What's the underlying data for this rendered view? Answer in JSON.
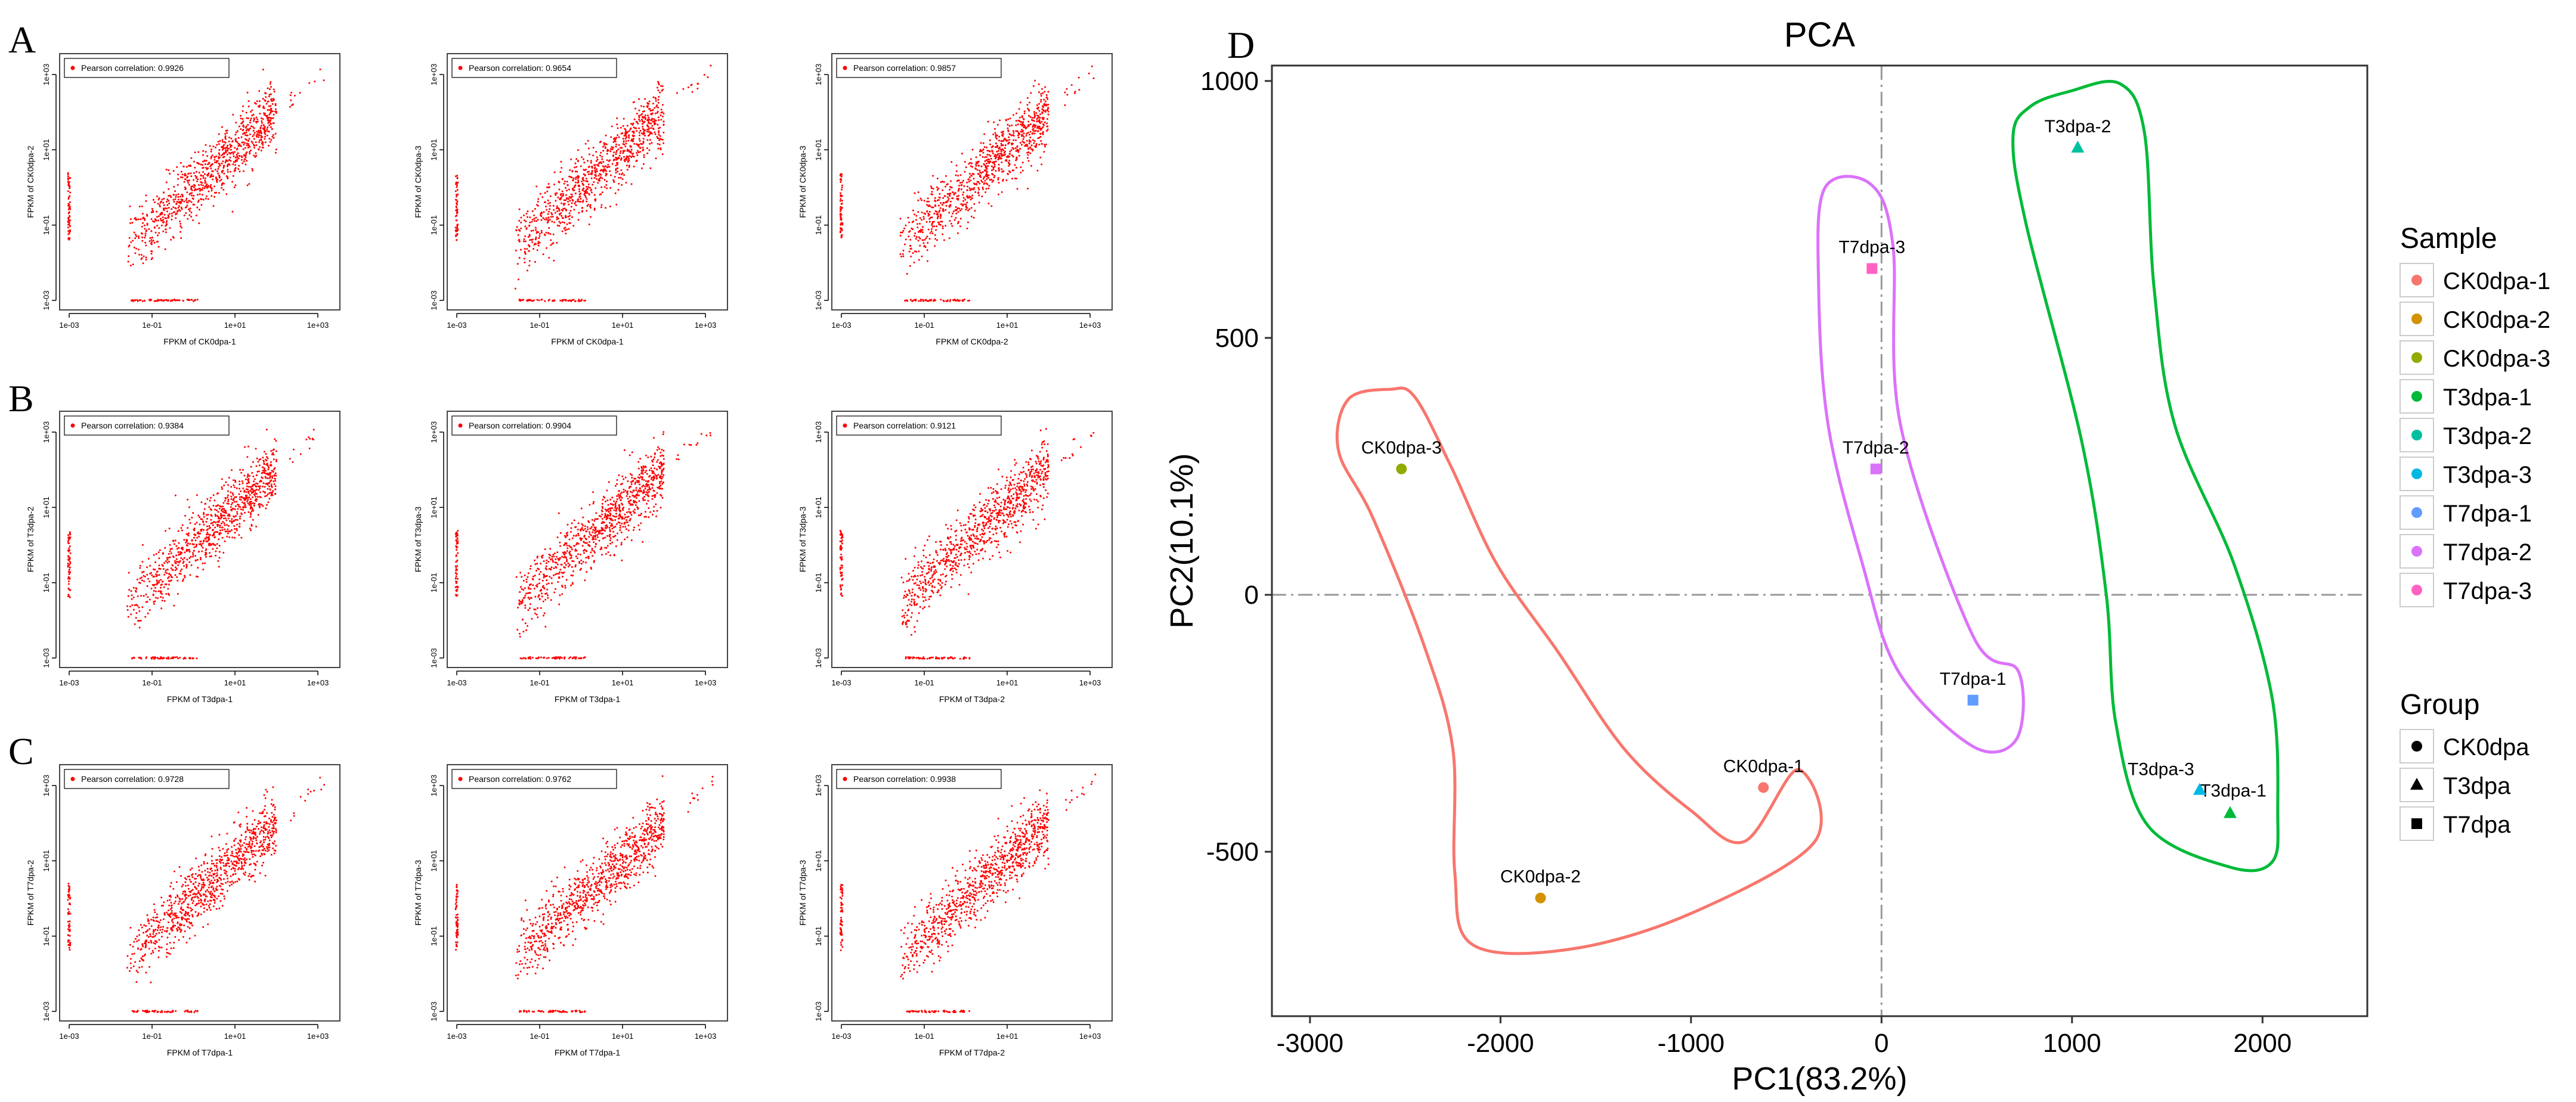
{
  "panel_letters": {
    "a": "A",
    "b": "B",
    "c": "C",
    "d": "D"
  },
  "chart_data": [
    {
      "type": "scatter",
      "panel": "A",
      "title": "Pearson correlation: 0.9926",
      "xlabel": "FPKM of CK0dpa-1",
      "ylabel": "FPKM of CK0dpa-2",
      "xscale": "log10",
      "yscale": "log10",
      "xlim": [
        0.001,
        2000
      ],
      "ylim": [
        0.001,
        2000
      ],
      "xticks": [
        "1e-03",
        "1e-01",
        "1e+01",
        "1e+03"
      ],
      "yticks": [
        "1e-03",
        "1e-01",
        "1e+01",
        "1e+03"
      ],
      "legend": "top-left",
      "point_color": "#FF0000",
      "seed": 11
    },
    {
      "type": "scatter",
      "panel": "A",
      "title": "Pearson correlation: 0.9654",
      "xlabel": "FPKM of CK0dpa-1",
      "ylabel": "FPKM of CK0dpa-3",
      "xscale": "log10",
      "yscale": "log10",
      "xlim": [
        0.001,
        2000
      ],
      "ylim": [
        0.001,
        2000
      ],
      "xticks": [
        "1e-03",
        "1e-01",
        "1e+01",
        "1e+03"
      ],
      "yticks": [
        "1e-03",
        "1e-01",
        "1e+01",
        "1e+03"
      ],
      "legend": "top-left",
      "point_color": "#FF0000",
      "seed": 12
    },
    {
      "type": "scatter",
      "panel": "A",
      "title": "Pearson correlation: 0.9857",
      "xlabel": "FPKM of CK0dpa-2",
      "ylabel": "FPKM of CK0dpa-3",
      "xscale": "log10",
      "yscale": "log10",
      "xlim": [
        0.001,
        2000
      ],
      "ylim": [
        0.001,
        2000
      ],
      "xticks": [
        "1e-03",
        "1e-01",
        "1e+01",
        "1e+03"
      ],
      "yticks": [
        "1e-03",
        "1e-01",
        "1e+01",
        "1e+03"
      ],
      "legend": "top-left",
      "point_color": "#FF0000",
      "seed": 13
    },
    {
      "type": "scatter",
      "panel": "B",
      "title": "Pearson correlation: 0.9384",
      "xlabel": "FPKM of T3dpa-1",
      "ylabel": "FPKM of T3dpa-2",
      "xscale": "log10",
      "yscale": "log10",
      "xlim": [
        0.001,
        2000
      ],
      "ylim": [
        0.001,
        2000
      ],
      "xticks": [
        "1e-03",
        "1e-01",
        "1e+01",
        "1e+03"
      ],
      "yticks": [
        "1e-03",
        "1e-01",
        "1e+01",
        "1e+03"
      ],
      "legend": "top-left",
      "point_color": "#FF0000",
      "seed": 21
    },
    {
      "type": "scatter",
      "panel": "B",
      "title": "Pearson correlation: 0.9904",
      "xlabel": "FPKM of T3dpa-1",
      "ylabel": "FPKM of T3dpa-3",
      "xscale": "log10",
      "yscale": "log10",
      "xlim": [
        0.001,
        2000
      ],
      "ylim": [
        0.001,
        2000
      ],
      "xticks": [
        "1e-03",
        "1e-01",
        "1e+01",
        "1e+03"
      ],
      "yticks": [
        "1e-03",
        "1e-01",
        "1e+01",
        "1e+03"
      ],
      "legend": "top-left",
      "point_color": "#FF0000",
      "seed": 22
    },
    {
      "type": "scatter",
      "panel": "B",
      "title": "Pearson correlation: 0.9121",
      "xlabel": "FPKM of T3dpa-2",
      "ylabel": "FPKM of T3dpa-3",
      "xscale": "log10",
      "yscale": "log10",
      "xlim": [
        0.001,
        2000
      ],
      "ylim": [
        0.001,
        2000
      ],
      "xticks": [
        "1e-03",
        "1e-01",
        "1e+01",
        "1e+03"
      ],
      "yticks": [
        "1e-03",
        "1e-01",
        "1e+01",
        "1e+03"
      ],
      "legend": "top-left",
      "point_color": "#FF0000",
      "seed": 23
    },
    {
      "type": "scatter",
      "panel": "C",
      "title": "Pearson correlation: 0.9728",
      "xlabel": "FPKM of T7dpa-1",
      "ylabel": "FPKM of T7dpa-2",
      "xscale": "log10",
      "yscale": "log10",
      "xlim": [
        0.001,
        2000
      ],
      "ylim": [
        0.001,
        2000
      ],
      "xticks": [
        "1e-03",
        "1e-01",
        "1e+01",
        "1e+03"
      ],
      "yticks": [
        "1e-03",
        "1e-01",
        "1e+01",
        "1e+03"
      ],
      "legend": "top-left",
      "point_color": "#FF0000",
      "seed": 31
    },
    {
      "type": "scatter",
      "panel": "C",
      "title": "Pearson correlation: 0.9762",
      "xlabel": "FPKM of T7dpa-1",
      "ylabel": "FPKM of T7dpa-3",
      "xscale": "log10",
      "yscale": "log10",
      "xlim": [
        0.001,
        2000
      ],
      "ylim": [
        0.001,
        2000
      ],
      "xticks": [
        "1e-03",
        "1e-01",
        "1e+01",
        "1e+03"
      ],
      "yticks": [
        "1e-03",
        "1e-01",
        "1e+01",
        "1e+03"
      ],
      "legend": "top-left",
      "point_color": "#FF0000",
      "seed": 32
    },
    {
      "type": "scatter",
      "panel": "C",
      "title": "Pearson correlation: 0.9938",
      "xlabel": "FPKM of T7dpa-2",
      "ylabel": "FPKM of T7dpa-3",
      "xscale": "log10",
      "yscale": "log10",
      "xlim": [
        0.001,
        2000
      ],
      "ylim": [
        0.001,
        2000
      ],
      "xticks": [
        "1e-03",
        "1e-01",
        "1e+01",
        "1e+03"
      ],
      "yticks": [
        "1e-03",
        "1e-01",
        "1e+01",
        "1e+03"
      ],
      "legend": "top-left",
      "point_color": "#FF0000",
      "seed": 33
    },
    {
      "type": "scatter",
      "panel": "D",
      "title": "PCA",
      "xlabel": "PC1(83.2%)",
      "ylabel": "PC2(10.1%)",
      "xlim": [
        -3200,
        2550
      ],
      "ylim": [
        -820,
        1030
      ],
      "xticks": [
        -3000,
        -2000,
        -1000,
        0,
        1000,
        2000
      ],
      "yticks": [
        -500,
        0,
        500,
        1000
      ],
      "tick_labels_x": [
        "-3000",
        "-2000",
        "-1000",
        "0",
        "1000",
        "2000"
      ],
      "tick_labels_y": [
        "-500",
        "0",
        "500",
        "1000"
      ],
      "reference_lines": {
        "x": 0,
        "y": 0
      },
      "points": [
        {
          "label": "CK0dpa-1",
          "x": -620,
          "y": -375,
          "group": "CK0dpa",
          "color": "#F8766D"
        },
        {
          "label": "CK0dpa-2",
          "x": -1790,
          "y": -590,
          "group": "CK0dpa",
          "color": "#D39200"
        },
        {
          "label": "CK0dpa-3",
          "x": -2520,
          "y": 245,
          "group": "CK0dpa",
          "color": "#93AA00"
        },
        {
          "label": "T3dpa-1",
          "x": 1830,
          "y": -425,
          "group": "T3dpa",
          "color": "#00BA38"
        },
        {
          "label": "T3dpa-2",
          "x": 1030,
          "y": 870,
          "group": "T3dpa",
          "color": "#00C19F"
        },
        {
          "label": "T3dpa-3",
          "x": 1670,
          "y": -380,
          "group": "T3dpa",
          "color": "#00B9E3"
        },
        {
          "label": "T7dpa-1",
          "x": 480,
          "y": -205,
          "group": "T7dpa",
          "color": "#619CFF"
        },
        {
          "label": "T7dpa-2",
          "x": -30,
          "y": 245,
          "group": "T7dpa",
          "color": "#DB72FB"
        },
        {
          "label": "T7dpa-3",
          "x": -50,
          "y": 635,
          "group": "T7dpa",
          "color": "#FF61C3"
        }
      ],
      "hulls": [
        {
          "group": "CK0dpa",
          "color": "#F8766D",
          "outline": [
            [
              -2580,
              400
            ],
            [
              -2450,
              385
            ],
            [
              -2260,
              250
            ],
            [
              -2020,
              60
            ],
            [
              -1700,
              -110
            ],
            [
              -1350,
              -300
            ],
            [
              -1000,
              -420
            ],
            [
              -720,
              -480
            ],
            [
              -440,
              -340
            ],
            [
              -350,
              -480
            ],
            [
              -1000,
              -620
            ],
            [
              -1640,
              -690
            ],
            [
              -2150,
              -680
            ],
            [
              -2240,
              -540
            ],
            [
              -2250,
              -300
            ],
            [
              -2400,
              -100
            ],
            [
              -2670,
              150
            ],
            [
              -2850,
              280
            ],
            [
              -2800,
              380
            ]
          ]
        },
        {
          "group": "T3dpa",
          "color": "#00BA38",
          "outline": [
            [
              990,
              980
            ],
            [
              1250,
              995
            ],
            [
              1380,
              900
            ],
            [
              1430,
              600
            ],
            [
              1540,
              330
            ],
            [
              1850,
              60
            ],
            [
              2050,
              -200
            ],
            [
              2080,
              -420
            ],
            [
              2050,
              -520
            ],
            [
              1830,
              -530
            ],
            [
              1400,
              -450
            ],
            [
              1230,
              -250
            ],
            [
              1180,
              0
            ],
            [
              1050,
              300
            ],
            [
              760,
              720
            ],
            [
              690,
              890
            ],
            [
              780,
              950
            ]
          ]
        },
        {
          "group": "T7dpa",
          "color": "#DB72FB",
          "outline": [
            [
              -300,
              790
            ],
            [
              -60,
              800
            ],
            [
              60,
              680
            ],
            [
              100,
              330
            ],
            [
              480,
              -80
            ],
            [
              720,
              -150
            ],
            [
              710,
              -280
            ],
            [
              480,
              -295
            ],
            [
              90,
              -150
            ],
            [
              -100,
              60
            ],
            [
              -280,
              330
            ],
            [
              -330,
              600
            ]
          ]
        }
      ],
      "legend": {
        "sample_title": "Sample",
        "samples": [
          {
            "label": "CK0dpa-1",
            "color": "#F8766D"
          },
          {
            "label": "CK0dpa-2",
            "color": "#D39200"
          },
          {
            "label": "CK0dpa-3",
            "color": "#93AA00"
          },
          {
            "label": "T3dpa-1",
            "color": "#00BA38"
          },
          {
            "label": "T3dpa-2",
            "color": "#00C19F"
          },
          {
            "label": "T3dpa-3",
            "color": "#00B9E3"
          },
          {
            "label": "T7dpa-1",
            "color": "#619CFF"
          },
          {
            "label": "T7dpa-2",
            "color": "#DB72FB"
          },
          {
            "label": "T7dpa-3",
            "color": "#FF61C3"
          }
        ],
        "group_title": "Group",
        "groups": [
          {
            "label": "CK0dpa",
            "shape": "circle"
          },
          {
            "label": "T3dpa",
            "shape": "triangle"
          },
          {
            "label": "T7dpa",
            "shape": "square"
          }
        ]
      }
    }
  ]
}
